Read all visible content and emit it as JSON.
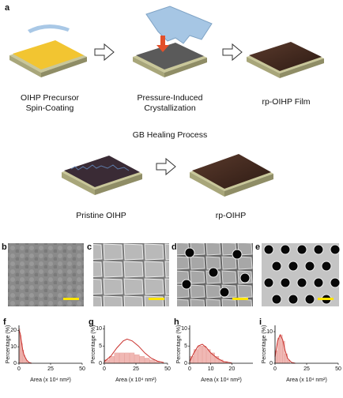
{
  "panels": {
    "a": "a",
    "b": "b",
    "c": "c",
    "d": "d",
    "e": "e"
  },
  "captions": {
    "spin_coating": [
      "OIHP Precursor",
      "Spin-Coating"
    ],
    "pressure": [
      "Pressure-Induced",
      "Crystallization"
    ],
    "film": "rp-OIHP Film",
    "healing_title": "GB Healing Process",
    "pristine": "Pristine OIHP",
    "rp": "rp-OIHP"
  },
  "histograms": [
    {
      "label": "f",
      "xlabel": "Area (x 10⁴ nm²)",
      "ylabel": "Percentage (%)",
      "xlim": [
        0,
        50
      ],
      "ylim": [
        0,
        23
      ],
      "xticks": [
        0,
        25,
        50
      ],
      "yticks": [
        0,
        10,
        20
      ],
      "bins": [
        0,
        1,
        2,
        3,
        4,
        5,
        6,
        7,
        8
      ],
      "counts": [
        21,
        17,
        12,
        8,
        5,
        3,
        1.5,
        0.5
      ],
      "fit": {
        "x": [
          0,
          1,
          2,
          3,
          4,
          6,
          8,
          10
        ],
        "y": [
          20,
          18,
          13,
          8,
          5,
          2,
          0.5,
          0
        ]
      }
    },
    {
      "label": "g",
      "xlabel": "Area (x 10⁴ nm²)",
      "ylabel": "Percentage (%)",
      "xlim": [
        0,
        50
      ],
      "ylim": [
        0,
        11
      ],
      "xticks": [
        0,
        25,
        50
      ],
      "yticks": [
        0,
        5,
        10
      ],
      "bins": [
        0,
        4,
        8,
        12,
        16,
        20,
        24,
        28,
        32,
        36,
        40,
        44
      ],
      "counts": [
        1,
        2,
        3,
        3,
        3,
        3,
        2.5,
        2,
        1.5,
        1,
        0.5
      ],
      "fit": {
        "x": [
          0,
          5,
          10,
          15,
          18,
          22,
          27,
          32,
          37,
          42,
          47
        ],
        "y": [
          0.5,
          2,
          4.5,
          6.5,
          7,
          6.5,
          5,
          3,
          1.5,
          0.6,
          0.2
        ]
      }
    },
    {
      "label": "h",
      "xlabel": "Area (x 10⁴ nm²)",
      "ylabel": "Percentage (%)",
      "xlim": [
        0,
        30
      ],
      "ylim": [
        0,
        11
      ],
      "xticks": [
        0,
        10,
        20
      ],
      "yticks": [
        0,
        5,
        10
      ],
      "bins": [
        0,
        2,
        4,
        6,
        8,
        10,
        12,
        14,
        16,
        18
      ],
      "counts": [
        2,
        4,
        5,
        5,
        4,
        3,
        2,
        1,
        0.5
      ],
      "fit": {
        "x": [
          0,
          2,
          4,
          6,
          8,
          10,
          13,
          16,
          20
        ],
        "y": [
          0.5,
          3,
          5,
          5.5,
          4.5,
          3,
          1.5,
          0.5,
          0.1
        ]
      }
    },
    {
      "label": "i",
      "xlabel": "Area (x 10⁴ nm²)",
      "ylabel": "Percentage (%)",
      "xlim": [
        0,
        50
      ],
      "ylim": [
        0,
        12
      ],
      "xticks": [
        0,
        25,
        50
      ],
      "yticks": [
        0,
        10
      ],
      "bins": [
        0,
        2,
        4,
        6,
        8,
        10,
        12
      ],
      "counts": [
        4,
        8,
        9,
        7,
        3,
        1
      ],
      "fit": {
        "x": [
          0,
          2,
          4,
          6,
          8,
          10,
          13,
          16
        ],
        "y": [
          2,
          7,
          9,
          7.5,
          4,
          1.5,
          0.3,
          0
        ]
      }
    }
  ]
}
